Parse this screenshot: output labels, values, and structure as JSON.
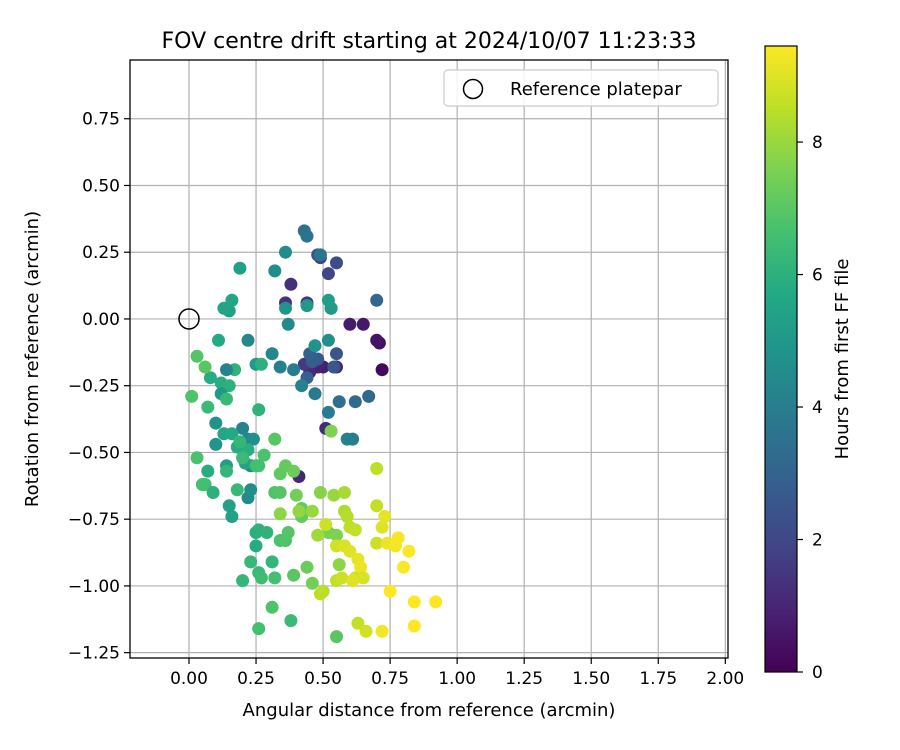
{
  "chart_data": {
    "type": "scatter",
    "title": "FOV centre drift starting at 2024/10/07 11:23:33",
    "xlabel": "Angular distance from reference (arcmin)",
    "ylabel": "Rotation from reference (arcmin)",
    "xlim": [
      -0.22,
      2.01
    ],
    "ylim": [
      -1.27,
      0.97
    ],
    "xticks": [
      0.0,
      0.25,
      0.5,
      0.75,
      1.0,
      1.25,
      1.5,
      1.75,
      2.0
    ],
    "xtick_labels": [
      "0.00",
      "0.25",
      "0.50",
      "0.75",
      "1.00",
      "1.25",
      "1.50",
      "1.75",
      "2.00"
    ],
    "yticks": [
      0.75,
      0.5,
      0.25,
      0.0,
      -0.25,
      -0.5,
      -0.75,
      -1.0,
      -1.25
    ],
    "ytick_labels": [
      "0.75",
      "0.50",
      "0.25",
      "0.00",
      "−0.25",
      "−0.50",
      "−0.75",
      "−1.00",
      "−1.25"
    ],
    "grid": true,
    "legend": {
      "position": "top-right",
      "entries": [
        {
          "label": "Reference platepar",
          "marker": "open-circle"
        }
      ]
    },
    "reference_point": {
      "x": 0.0,
      "y": 0.0
    },
    "colorbar": {
      "label": "Hours from first FF file",
      "colormap": "viridis",
      "range": [
        0,
        9.45
      ],
      "ticks": [
        0,
        2,
        4,
        6,
        8
      ],
      "tick_labels": [
        "0",
        "2",
        "4",
        "6",
        "8"
      ]
    },
    "series": [
      {
        "points": [
          [
            0.72,
            -0.19,
            0.2
          ],
          [
            0.71,
            -0.09,
            0.4
          ],
          [
            0.7,
            -0.08,
            0.5
          ],
          [
            0.65,
            -0.02,
            0.6
          ],
          [
            0.6,
            -0.02,
            0.7
          ],
          [
            0.5,
            -0.18,
            0.8
          ],
          [
            0.55,
            -0.18,
            1.0
          ],
          [
            0.48,
            -0.18,
            0.9
          ],
          [
            0.45,
            -0.2,
            1.1
          ],
          [
            0.51,
            -0.41,
            1.2
          ],
          [
            0.41,
            -0.59,
            1.0
          ],
          [
            0.38,
            0.13,
            1.3
          ],
          [
            0.36,
            0.06,
            1.4
          ],
          [
            0.44,
            0.06,
            1.5
          ],
          [
            0.43,
            -0.17,
            1.6
          ],
          [
            0.49,
            0.23,
            1.8
          ],
          [
            0.52,
            0.17,
            2.0
          ],
          [
            0.55,
            0.21,
            2.2
          ],
          [
            0.48,
            0.24,
            2.3
          ],
          [
            0.53,
            0.04,
            2.4
          ],
          [
            0.55,
            -0.13,
            2.5
          ],
          [
            0.54,
            -0.18,
            2.6
          ],
          [
            0.48,
            -0.15,
            2.7
          ],
          [
            0.46,
            -0.16,
            2.8
          ],
          [
            0.44,
            -0.22,
            2.9
          ],
          [
            0.45,
            -0.13,
            3.0
          ],
          [
            0.7,
            0.07,
            3.1
          ],
          [
            0.67,
            -0.29,
            3.2
          ],
          [
            0.62,
            -0.31,
            3.3
          ],
          [
            0.56,
            -0.31,
            3.4
          ],
          [
            0.43,
            0.33,
            3.5
          ],
          [
            0.44,
            0.31,
            3.6
          ],
          [
            0.49,
            0.24,
            3.7
          ],
          [
            0.47,
            -0.28,
            3.8
          ],
          [
            0.52,
            -0.35,
            3.9
          ],
          [
            0.61,
            -0.45,
            4.0
          ],
          [
            0.59,
            -0.45,
            4.1
          ],
          [
            0.42,
            -0.25,
            4.2
          ],
          [
            0.39,
            -0.19,
            4.0
          ],
          [
            0.34,
            -0.18,
            4.1
          ],
          [
            0.31,
            -0.13,
            4.3
          ],
          [
            0.37,
            -0.02,
            4.4
          ],
          [
            0.36,
            0.25,
            4.5
          ],
          [
            0.32,
            0.18,
            4.6
          ],
          [
            0.52,
            -0.08,
            4.7
          ],
          [
            0.47,
            -0.1,
            4.8
          ],
          [
            0.36,
            0.04,
            4.9
          ],
          [
            0.44,
            0.05,
            5.0
          ],
          [
            0.53,
            0.04,
            5.1
          ],
          [
            0.52,
            0.07,
            5.2
          ],
          [
            0.22,
            -0.08,
            4.3
          ],
          [
            0.19,
            0.19,
            5.3
          ],
          [
            0.15,
            0.03,
            5.4
          ],
          [
            0.13,
            0.04,
            5.5
          ],
          [
            0.16,
            0.07,
            5.6
          ],
          [
            0.11,
            -0.08,
            5.7
          ],
          [
            0.08,
            -0.22,
            5.8
          ],
          [
            0.12,
            -0.24,
            5.9
          ],
          [
            0.15,
            -0.25,
            6.0
          ],
          [
            0.17,
            -0.19,
            6.1
          ],
          [
            0.14,
            -0.19,
            4.2
          ],
          [
            0.2,
            -0.41,
            4.2
          ],
          [
            0.22,
            -0.45,
            4.3
          ],
          [
            0.23,
            -0.55,
            4.4
          ],
          [
            0.22,
            -0.67,
            4.5
          ],
          [
            0.23,
            -0.64,
            4.6
          ],
          [
            0.24,
            -0.45,
            4.7
          ],
          [
            0.1,
            -0.39,
            4.8
          ],
          [
            0.1,
            -0.47,
            4.9
          ],
          [
            0.12,
            -0.28,
            5.0
          ],
          [
            0.25,
            -0.17,
            5.1
          ],
          [
            0.14,
            -0.55,
            5.2
          ],
          [
            0.15,
            -0.7,
            5.3
          ],
          [
            0.16,
            -0.74,
            5.4
          ],
          [
            0.21,
            -0.54,
            5.5
          ],
          [
            0.13,
            -0.43,
            5.6
          ],
          [
            0.16,
            -0.43,
            5.7
          ],
          [
            0.18,
            -0.48,
            5.8
          ],
          [
            0.22,
            -0.49,
            5.9
          ],
          [
            0.27,
            -0.17,
            6.0
          ],
          [
            0.26,
            -0.34,
            6.1
          ],
          [
            0.19,
            -0.46,
            6.2
          ],
          [
            0.14,
            -0.3,
            6.3
          ],
          [
            0.07,
            -0.33,
            6.4
          ],
          [
            0.06,
            -0.62,
            6.5
          ],
          [
            0.05,
            -0.62,
            6.6
          ],
          [
            0.03,
            -0.52,
            6.7
          ],
          [
            0.01,
            -0.29,
            6.8
          ],
          [
            0.03,
            -0.14,
            6.9
          ],
          [
            0.06,
            -0.18,
            7.0
          ],
          [
            0.07,
            -0.57,
            5.8
          ],
          [
            0.09,
            -0.65,
            6.0
          ],
          [
            0.14,
            -0.57,
            6.2
          ],
          [
            0.18,
            -0.64,
            6.3
          ],
          [
            0.2,
            -0.52,
            6.4
          ],
          [
            0.25,
            -0.55,
            6.5
          ],
          [
            0.26,
            -0.55,
            6.6
          ],
          [
            0.28,
            -0.51,
            6.7
          ],
          [
            0.32,
            -0.65,
            6.8
          ],
          [
            0.34,
            -0.65,
            6.9
          ],
          [
            0.32,
            -0.45,
            7.0
          ],
          [
            0.34,
            -0.58,
            7.1
          ],
          [
            0.36,
            -0.55,
            7.2
          ],
          [
            0.39,
            -0.57,
            7.3
          ],
          [
            0.4,
            -0.66,
            7.4
          ],
          [
            0.25,
            -0.85,
            5.8
          ],
          [
            0.25,
            -0.8,
            5.9
          ],
          [
            0.26,
            -0.79,
            6.0
          ],
          [
            0.29,
            -0.8,
            6.1
          ],
          [
            0.31,
            -0.91,
            6.2
          ],
          [
            0.23,
            -0.91,
            6.3
          ],
          [
            0.26,
            -0.95,
            6.4
          ],
          [
            0.27,
            -0.97,
            6.5
          ],
          [
            0.32,
            -0.97,
            6.6
          ],
          [
            0.34,
            -0.83,
            6.7
          ],
          [
            0.36,
            -0.83,
            6.8
          ],
          [
            0.37,
            -0.8,
            6.9
          ],
          [
            0.39,
            -0.96,
            7.0
          ],
          [
            0.42,
            -0.71,
            7.1
          ],
          [
            0.42,
            -0.74,
            7.2
          ],
          [
            0.44,
            -0.93,
            7.3
          ],
          [
            0.46,
            -0.99,
            7.4
          ],
          [
            0.52,
            -0.8,
            7.5
          ],
          [
            0.55,
            -0.81,
            7.6
          ],
          [
            0.49,
            -0.65,
            7.7
          ],
          [
            0.34,
            -0.73,
            7.8
          ],
          [
            0.41,
            -0.72,
            7.9
          ],
          [
            0.46,
            -0.72,
            8.0
          ],
          [
            0.48,
            -0.81,
            8.1
          ],
          [
            0.2,
            -0.98,
            6.2
          ],
          [
            0.38,
            -1.13,
            6.4
          ],
          [
            0.26,
            -1.16,
            6.6
          ],
          [
            0.31,
            -1.08,
            6.8
          ],
          [
            0.55,
            -1.19,
            7.0
          ],
          [
            0.53,
            -0.42,
            7.6
          ],
          [
            0.56,
            -0.92,
            7.8
          ],
          [
            0.54,
            -0.66,
            8.0
          ],
          [
            0.58,
            -0.65,
            8.2
          ],
          [
            0.58,
            -0.72,
            8.3
          ],
          [
            0.59,
            -0.74,
            8.4
          ],
          [
            0.6,
            -0.78,
            8.5
          ],
          [
            0.62,
            -0.79,
            8.6
          ],
          [
            0.51,
            -0.77,
            8.7
          ],
          [
            0.55,
            -0.85,
            8.8
          ],
          [
            0.58,
            -0.85,
            8.9
          ],
          [
            0.6,
            -0.87,
            9.0
          ],
          [
            0.63,
            -0.9,
            9.1
          ],
          [
            0.64,
            -0.93,
            9.2
          ],
          [
            0.5,
            -1.02,
            8.4
          ],
          [
            0.49,
            -1.03,
            8.5
          ],
          [
            0.55,
            -0.98,
            8.6
          ],
          [
            0.57,
            -0.97,
            8.7
          ],
          [
            0.62,
            -0.97,
            8.8
          ],
          [
            0.65,
            -0.97,
            8.9
          ],
          [
            0.61,
            -0.98,
            9.0
          ],
          [
            0.63,
            -1.14,
            8.6
          ],
          [
            0.66,
            -1.17,
            8.8
          ],
          [
            0.72,
            -1.17,
            9.3
          ],
          [
            0.7,
            -0.84,
            8.7
          ],
          [
            0.7,
            -0.56,
            8.5
          ],
          [
            0.7,
            -0.7,
            8.6
          ],
          [
            0.72,
            -0.78,
            9.0
          ],
          [
            0.73,
            -0.74,
            9.1
          ],
          [
            0.74,
            -0.84,
            9.2
          ],
          [
            0.77,
            -0.85,
            9.3
          ],
          [
            0.78,
            -0.82,
            9.35
          ],
          [
            0.8,
            -0.93,
            9.4
          ],
          [
            0.82,
            -0.87,
            9.4
          ],
          [
            0.75,
            -1.02,
            9.45
          ],
          [
            0.84,
            -1.06,
            9.45
          ],
          [
            0.92,
            -1.06,
            9.45
          ],
          [
            0.84,
            -1.15,
            9.45
          ]
        ]
      }
    ]
  }
}
